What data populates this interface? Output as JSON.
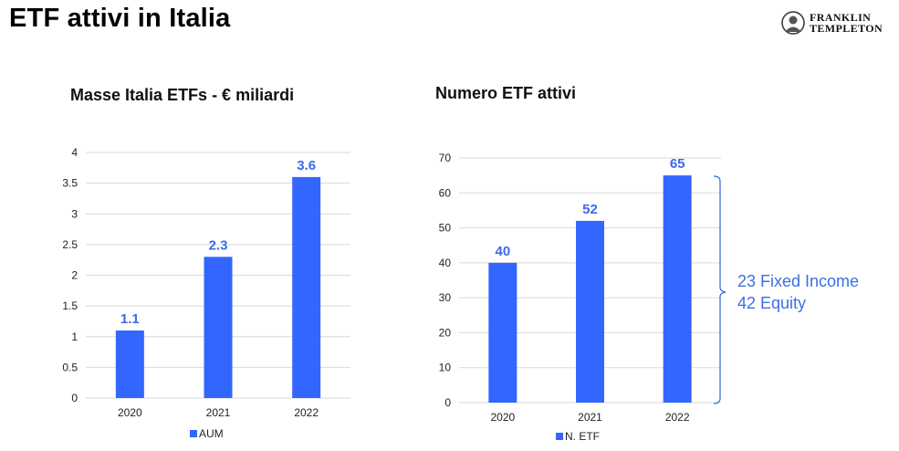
{
  "page": {
    "title": "ETF attivi in Italia"
  },
  "logo": {
    "line1": "FRANKLIN",
    "line2": "TEMPLETON"
  },
  "chart_data": [
    {
      "type": "bar",
      "title": "Masse Italia ETFs - € miliardi",
      "categories": [
        "2020",
        "2021",
        "2022"
      ],
      "series": [
        {
          "name": "AUM",
          "values": [
            1.1,
            2.3,
            3.6
          ]
        }
      ],
      "data_labels": [
        "1.1",
        "2.3",
        "3.6"
      ],
      "yticks": [
        "0",
        "0.5",
        "1",
        "1.5",
        "2",
        "2.5",
        "3",
        "3.5",
        "4"
      ],
      "ylim": [
        0,
        4
      ],
      "grid": true,
      "legend": "bottom",
      "bar_color": "#3366ff"
    },
    {
      "type": "bar",
      "title": "Numero ETF attivi",
      "categories": [
        "2020",
        "2021",
        "2022"
      ],
      "series": [
        {
          "name": "N. ETF",
          "values": [
            40,
            52,
            65
          ]
        }
      ],
      "data_labels": [
        "40",
        "52",
        "65"
      ],
      "yticks": [
        "0",
        "10",
        "20",
        "30",
        "40",
        "50",
        "60",
        "70"
      ],
      "ylim": [
        0,
        70
      ],
      "grid": true,
      "legend": "bottom",
      "bar_color": "#3366ff"
    }
  ],
  "annotation": {
    "line1": "23 Fixed Income",
    "line2": "42 Equity",
    "color": "#3d6fe3"
  }
}
